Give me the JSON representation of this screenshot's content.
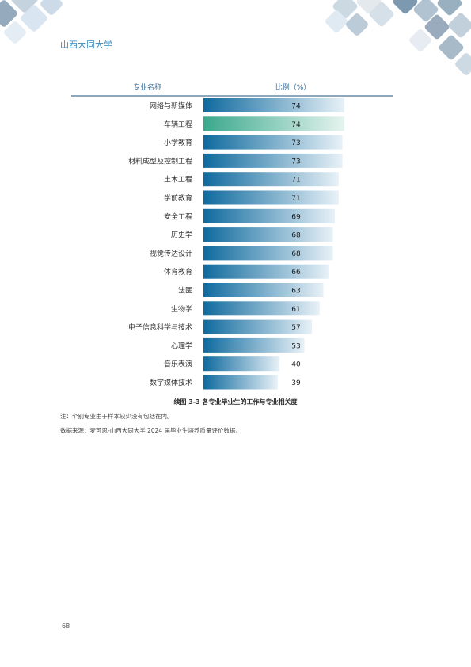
{
  "header": {
    "school_name": "山西大同大学"
  },
  "chart_data": {
    "type": "bar",
    "orientation": "horizontal",
    "column_headers": {
      "major": "专业名称",
      "ratio": "比例（%）"
    },
    "categories": [
      "网络与新媒体",
      "车辆工程",
      "小学教育",
      "材料成型及控制工程",
      "土木工程",
      "学前教育",
      "安全工程",
      "历史学",
      "视觉传达设计",
      "体育教育",
      "法医",
      "生物学",
      "电子信息科学与技术",
      "心理学",
      "音乐表演",
      "数字媒体技术"
    ],
    "values": [
      74,
      74,
      73,
      73,
      71,
      71,
      69,
      68,
      68,
      66,
      63,
      61,
      57,
      53,
      40,
      39
    ],
    "highlight_index": 1,
    "colors": {
      "bar_start": "#0f6a9e",
      "bar_end": "#e8f1f7",
      "highlight_start": "#3aa88c",
      "highlight_end": "#e6f4ef"
    }
  },
  "caption": "续图 3-3  各专业毕业生的工作与专业相关度",
  "notes": {
    "note1": "注：个别专业由于样本较少没有包括在内。",
    "source": "数据来源：麦可思-山西大同大学 2024 届毕业生培养质量评价数据。"
  },
  "page_number": "68"
}
